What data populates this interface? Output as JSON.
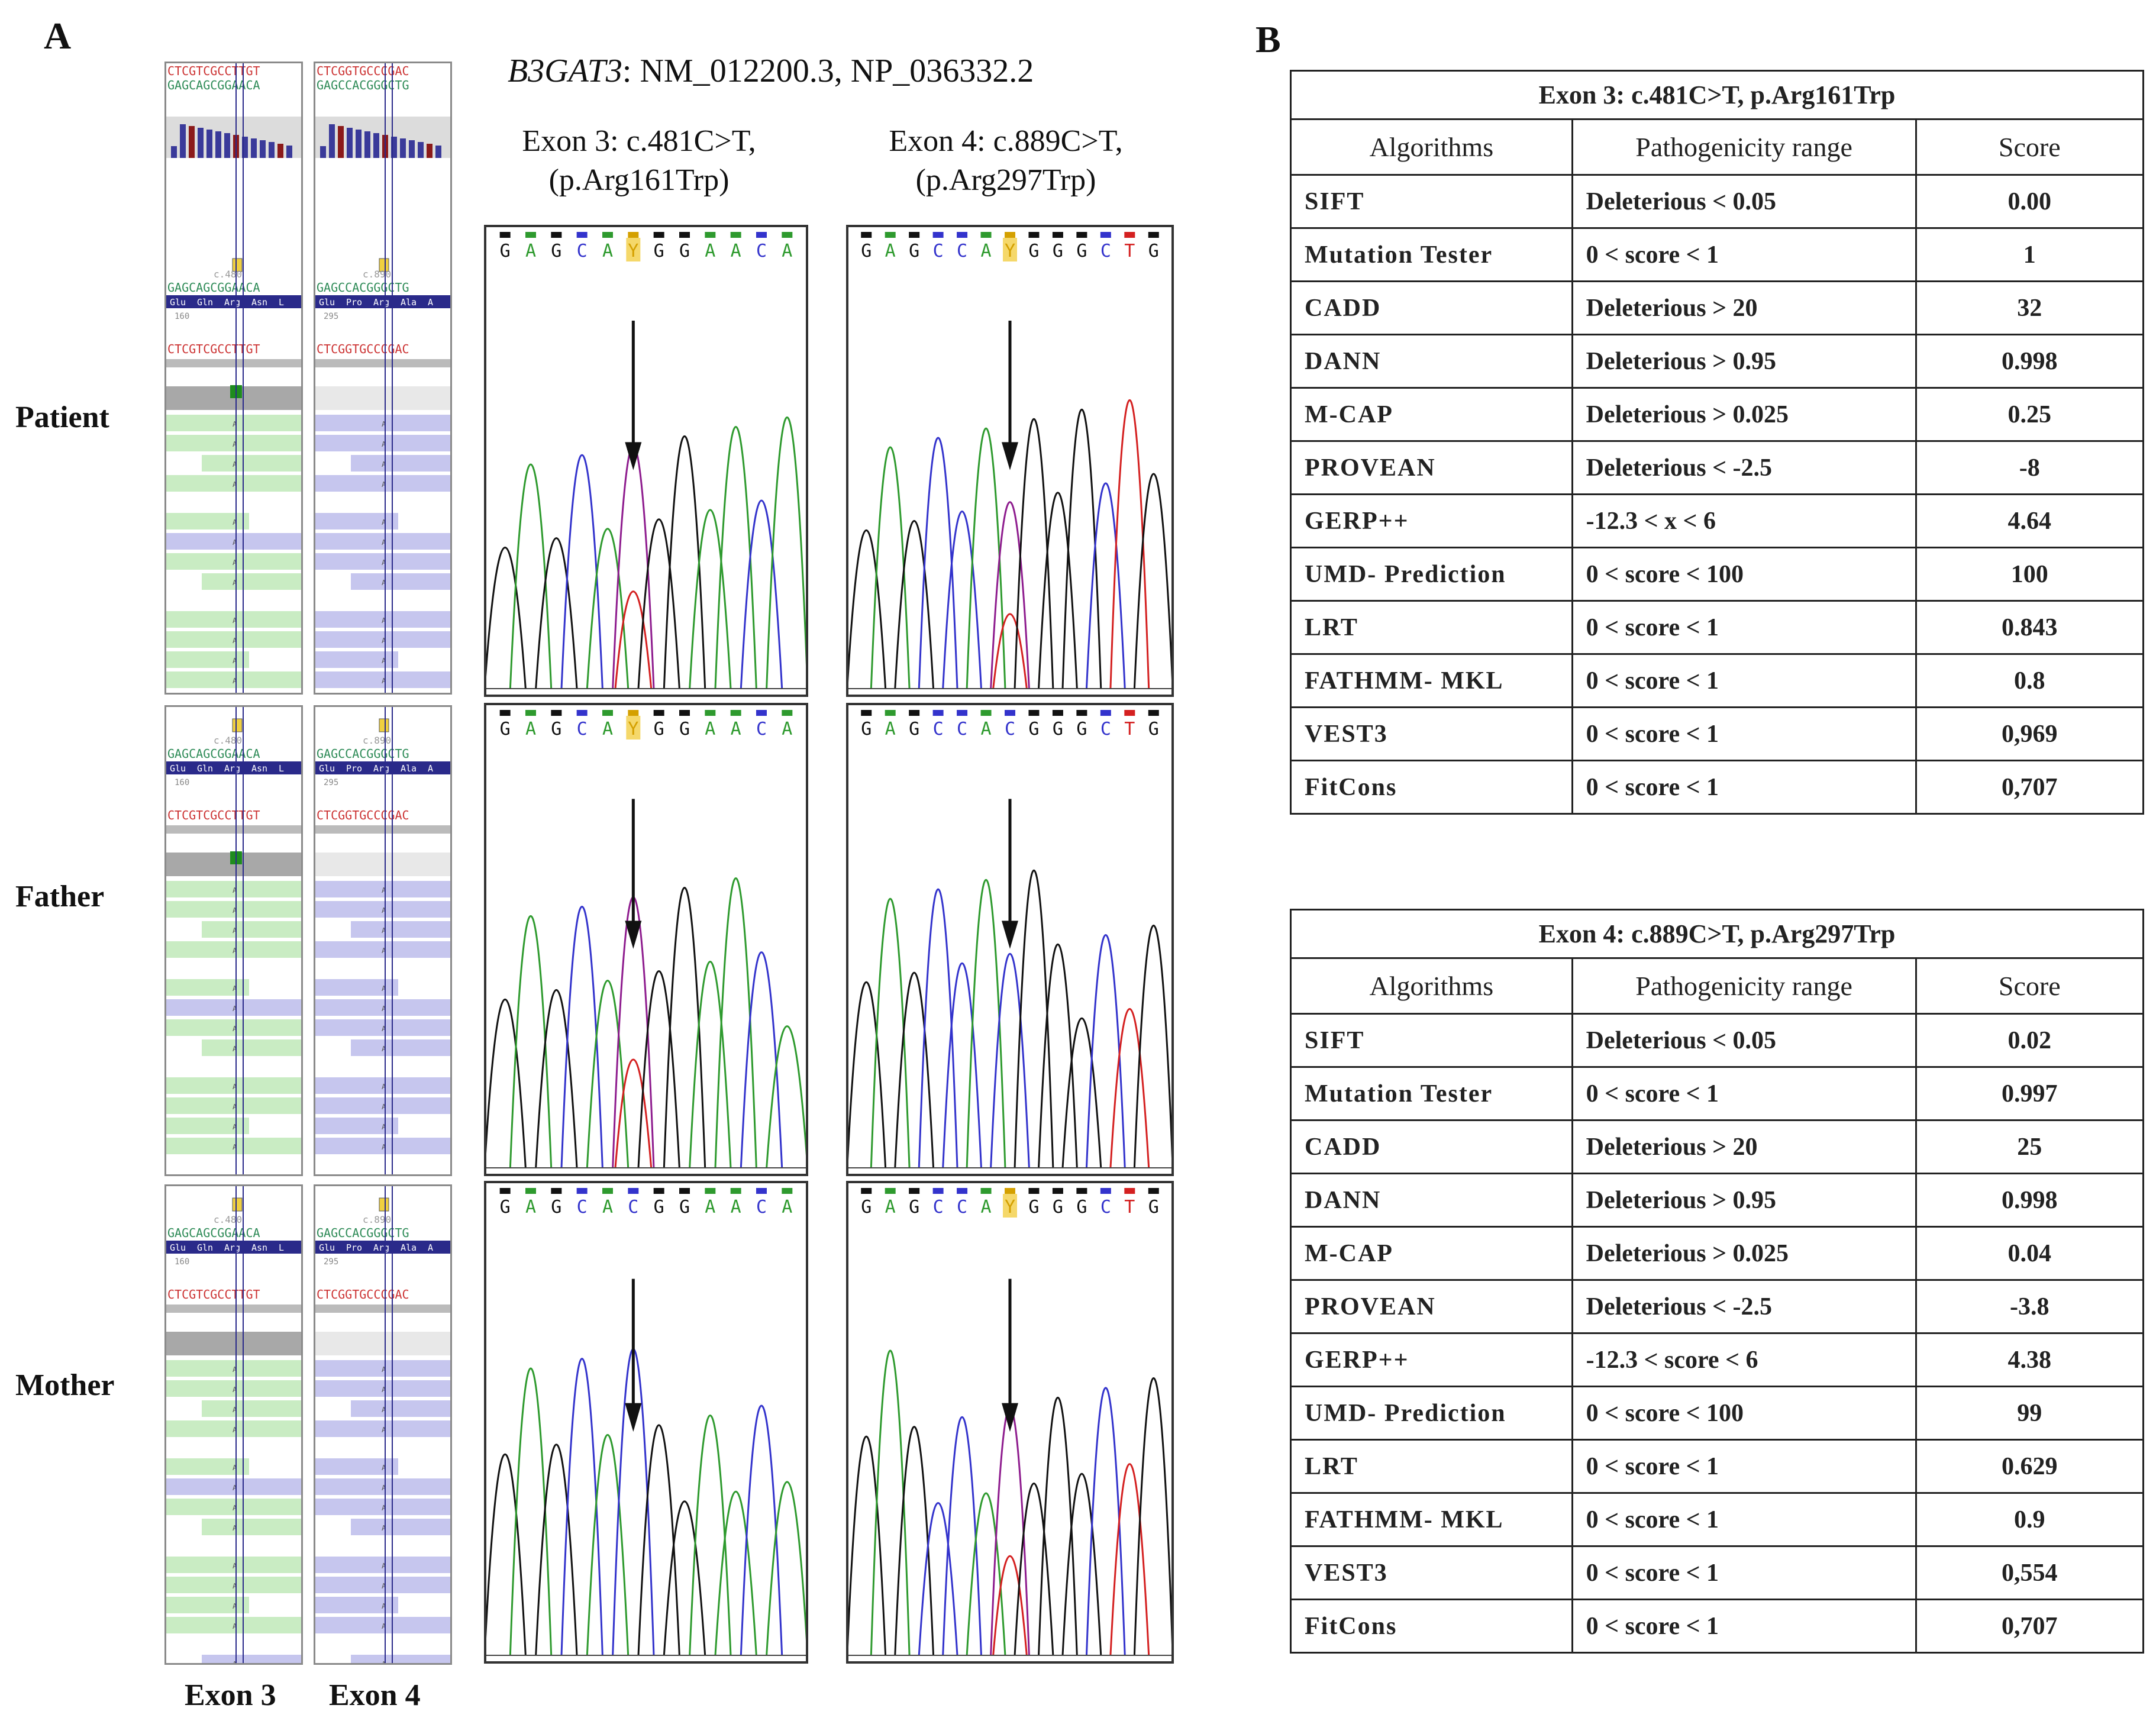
{
  "panel_a": {
    "letter": "A",
    "gene_title": {
      "gene": "B3GAT3",
      "rest": ": NM_012200.3, NP_036332.2"
    },
    "exon3_header": {
      "line1": "Exon 3: c.481C>T,",
      "line2": "(p.Arg161Trp)"
    },
    "exon4_header": {
      "line1": "Exon 4: c.889C>T,",
      "line2": "(p.Arg297Trp)"
    },
    "rows": [
      "Patient",
      "Father",
      "Mother"
    ],
    "columns": [
      "Exon 3",
      "Exon 4"
    ],
    "igv": {
      "exon3_top_seq": "CTCGTCGCCTTGT",
      "exon3_comp_seq": "GAGCAGCGGAACA",
      "exon4_top_seq": "CTCGGTGCCCGAC",
      "exon4_comp_seq": "GAGCCACGGGCTG",
      "exon3_pos": "c.480",
      "exon4_pos": "c.890",
      "exon3_codons": [
        "Glu",
        "Gln",
        "Arg",
        "Asn",
        "L"
      ],
      "exon4_codons": [
        "Glu",
        "Pro",
        "Arg",
        "Ala",
        "A"
      ],
      "exon3_aa_num": "160",
      "exon4_aa_num": "295",
      "read_letter": "A"
    },
    "traces": {
      "patient_exon3": [
        "G",
        "A",
        "G",
        "C",
        "A",
        "Y",
        "G",
        "G",
        "A",
        "A",
        "C",
        "A"
      ],
      "patient_exon4": [
        "G",
        "A",
        "G",
        "C",
        "C",
        "A",
        "Y",
        "G",
        "G",
        "G",
        "C",
        "T",
        "G"
      ],
      "father_exon3": [
        "G",
        "A",
        "G",
        "C",
        "A",
        "Y",
        "G",
        "G",
        "A",
        "A",
        "C",
        "A"
      ],
      "father_exon4": [
        "G",
        "A",
        "G",
        "C",
        "C",
        "A",
        "C",
        "G",
        "G",
        "G",
        "C",
        "T",
        "G"
      ],
      "mother_exon3": [
        "G",
        "A",
        "G",
        "C",
        "A",
        "C",
        "G",
        "G",
        "A",
        "A",
        "C",
        "A"
      ],
      "mother_exon4": [
        "G",
        "A",
        "G",
        "C",
        "C",
        "A",
        "Y",
        "G",
        "G",
        "G",
        "C",
        "T",
        "G"
      ]
    },
    "colors": {
      "A": "#2e9a2e",
      "C": "#3333cc",
      "G": "#111111",
      "T": "#d42020",
      "Y": "#d4a000",
      "mut": "#8e1c8e"
    }
  },
  "panel_b": {
    "letter": "B",
    "tables": [
      {
        "caption": "Exon 3: c.481C>T, p.Arg161Trp",
        "headers": [
          "Algorithms",
          "Pathogenicity  range",
          "Score"
        ],
        "rows": [
          [
            "SIFT",
            "Deleterious < 0.05",
            "0.00"
          ],
          [
            "Mutation Tester",
            "0 < score < 1",
            "1"
          ],
          [
            "CADD",
            "Deleterious > 20",
            "32"
          ],
          [
            "DANN",
            "Deleterious > 0.95",
            "0.998"
          ],
          [
            "M-CAP",
            "Deleterious > 0.025",
            "0.25"
          ],
          [
            "PROVEAN",
            "Deleterious < -2.5",
            "-8"
          ],
          [
            "GERP++",
            "-12.3 < x < 6",
            "4.64"
          ],
          [
            "UMD- Prediction",
            "0 < score < 100",
            "100"
          ],
          [
            "LRT",
            "0 < score < 1",
            "0.843"
          ],
          [
            "FATHMM- MKL",
            "0 < score < 1",
            "0.8"
          ],
          [
            "VEST3",
            "0 < score < 1",
            "0,969"
          ],
          [
            "FitCons",
            "0 < score < 1",
            "0,707"
          ]
        ]
      },
      {
        "caption": "Exon 4: c.889C>T, p.Arg297Trp",
        "headers": [
          "Algorithms",
          "Pathogenicity  range",
          "Score"
        ],
        "rows": [
          [
            "SIFT",
            "Deleterious < 0.05",
            "0.02"
          ],
          [
            "Mutation Tester",
            "0 < score < 1",
            "0.997"
          ],
          [
            "CADD",
            "Deleterious > 20",
            "25"
          ],
          [
            "DANN",
            "Deleterious > 0.95",
            "0.998"
          ],
          [
            "M-CAP",
            "Deleterious > 0.025",
            "0.04"
          ],
          [
            "PROVEAN",
            "Deleterious < -2.5",
            "-3.8"
          ],
          [
            "GERP++",
            "-12.3 < score < 6",
            "4.38"
          ],
          [
            "UMD- Prediction",
            "0 < score < 100",
            "99"
          ],
          [
            "LRT",
            "0 < score < 1",
            "0.629"
          ],
          [
            "FATHMM- MKL",
            "0 < score < 1",
            "0.9"
          ],
          [
            "VEST3",
            "0 < score < 1",
            "0,554"
          ],
          [
            "FitCons",
            "0 < score < 1",
            "0,707"
          ]
        ]
      }
    ]
  }
}
